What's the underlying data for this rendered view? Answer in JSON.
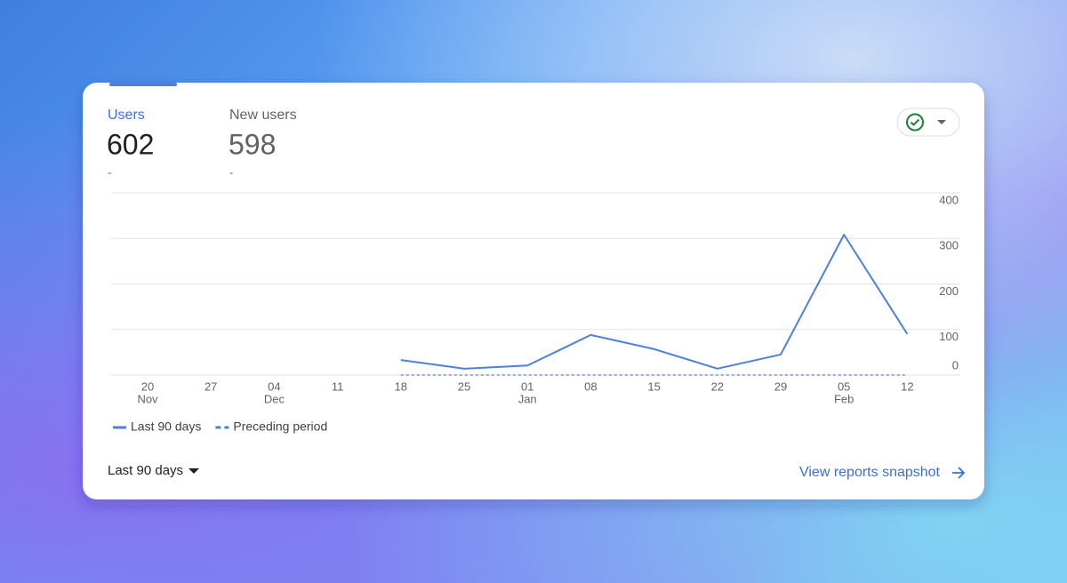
{
  "tabs": [
    {
      "label": "Users",
      "value": 602,
      "change": "-"
    },
    {
      "label": "New users",
      "value": 598,
      "change": "-"
    }
  ],
  "chart_data": {
    "type": "line",
    "categories": [
      "20",
      "27",
      "04",
      "11",
      "18",
      "25",
      "01",
      "08",
      "15",
      "22",
      "29",
      "05",
      "12"
    ],
    "month_labels": [
      "Nov",
      null,
      "Dec",
      null,
      null,
      null,
      "Jan",
      null,
      null,
      null,
      null,
      "Feb",
      null
    ],
    "series": [
      {
        "name": "Last 90 days",
        "color": "#4f7fdc",
        "dashed": false,
        "values": [
          null,
          null,
          null,
          null,
          33,
          14,
          21,
          88,
          57,
          14,
          45,
          308,
          90
        ]
      },
      {
        "name": "Preceding period",
        "color": "#4f7fdc",
        "dashed": true,
        "values": [
          null,
          null,
          null,
          null,
          0,
          0,
          0,
          0,
          0,
          0,
          0,
          0,
          0
        ]
      }
    ],
    "ylim": [
      0,
      400
    ],
    "yticks": [
      0,
      100,
      200,
      300,
      400
    ],
    "grid": true
  },
  "footer": {
    "date_range": "Last 90 days",
    "link": "View reports snapshot"
  }
}
